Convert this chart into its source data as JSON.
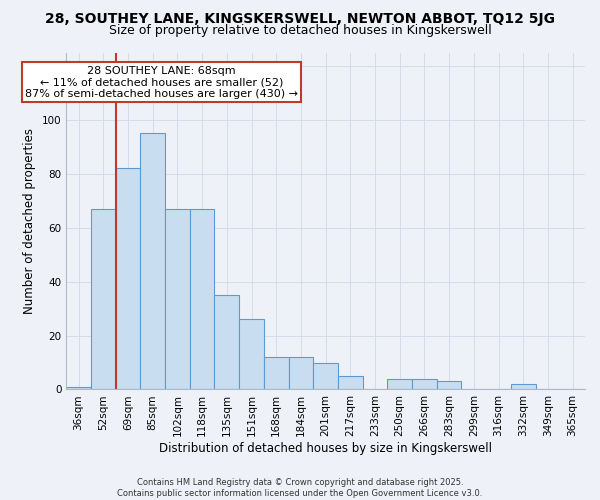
{
  "title": "28, SOUTHEY LANE, KINGSKERSWELL, NEWTON ABBOT, TQ12 5JG",
  "subtitle": "Size of property relative to detached houses in Kingskerswell",
  "xlabel": "Distribution of detached houses by size in Kingskerswell",
  "ylabel": "Number of detached properties",
  "bar_labels": [
    "36sqm",
    "52sqm",
    "69sqm",
    "85sqm",
    "102sqm",
    "118sqm",
    "135sqm",
    "151sqm",
    "168sqm",
    "184sqm",
    "201sqm",
    "217sqm",
    "233sqm",
    "250sqm",
    "266sqm",
    "283sqm",
    "299sqm",
    "316sqm",
    "332sqm",
    "349sqm",
    "365sqm"
  ],
  "bar_values": [
    1,
    67,
    82,
    95,
    67,
    67,
    35,
    26,
    12,
    12,
    10,
    5,
    0,
    4,
    4,
    3,
    0,
    0,
    2,
    0,
    0
  ],
  "bar_color": "#c9ddf0",
  "bar_edge_color": "#5b9bd5",
  "vline_index": 2,
  "vline_color": "#c0392b",
  "annotation_line1": "28 SOUTHEY LANE: 68sqm",
  "annotation_line2": "← 11% of detached houses are smaller (52)",
  "annotation_line3": "87% of semi-detached houses are larger (430) →",
  "annotation_box_edgecolor": "#c0392b",
  "annotation_box_facecolor": "white",
  "ylim": [
    0,
    125
  ],
  "yticks": [
    0,
    20,
    40,
    60,
    80,
    100,
    120
  ],
  "grid_color": "#d0d8e8",
  "bg_color": "#eef2f8",
  "footnote": "Contains HM Land Registry data © Crown copyright and database right 2025.\nContains public sector information licensed under the Open Government Licence v3.0.",
  "title_fontsize": 10,
  "subtitle_fontsize": 9,
  "xlabel_fontsize": 8.5,
  "ylabel_fontsize": 8.5,
  "tick_fontsize": 7.5,
  "annotation_fontsize": 8,
  "footnote_fontsize": 6
}
